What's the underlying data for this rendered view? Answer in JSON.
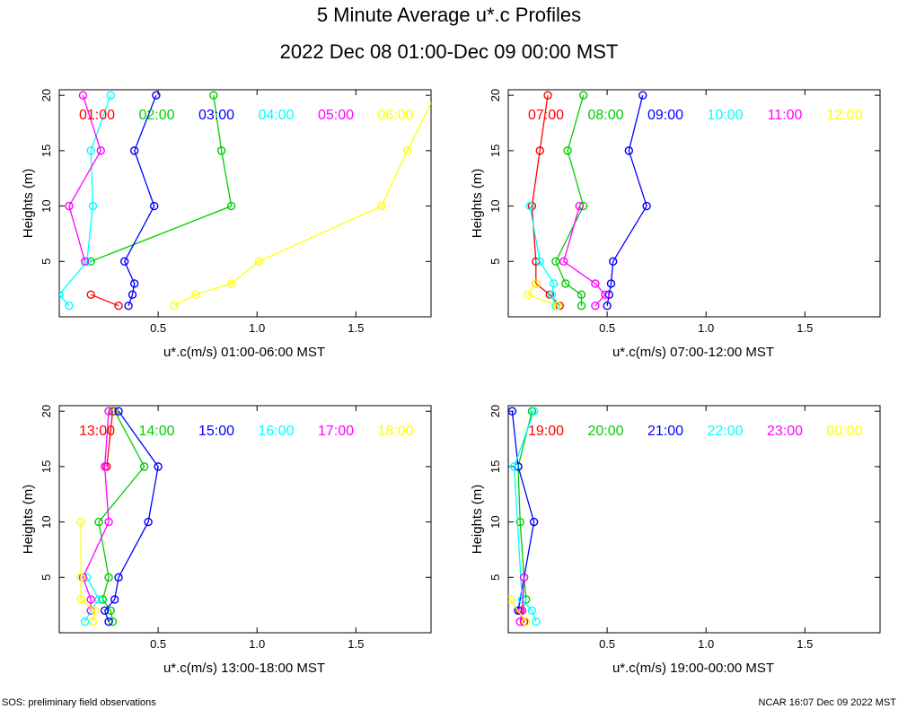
{
  "header": {
    "title": "5 Minute Average u*.c Profiles",
    "subtitle": "2022 Dec 08 01:00-Dec 09 00:00 MST"
  },
  "footer": {
    "left": "SOS: preliminary field observations",
    "right": "NCAR 16:07 Dec 09 2022 MST"
  },
  "chart_data": [
    {
      "type": "line",
      "xlabel": "u*.c(m/s) 01:00-06:00 MST",
      "ylabel": "Heights (m)",
      "xlim": [
        0,
        1.88
      ],
      "ylim": [
        0,
        20.5
      ],
      "xticks": [
        "0.5",
        "1.0",
        "1.5"
      ],
      "yticks": [
        "5",
        "10",
        "15",
        "20"
      ],
      "series": [
        {
          "name": "01:00",
          "color": "#ff0000",
          "points": [
            [
              0.3,
              1
            ],
            [
              0.16,
              2
            ]
          ]
        },
        {
          "name": "02:00",
          "color": "#00cc00",
          "points": [
            [
              0.16,
              5
            ],
            [
              0.87,
              10
            ],
            [
              0.82,
              15
            ],
            [
              0.78,
              20
            ]
          ]
        },
        {
          "name": "03:00",
          "color": "#0000ff",
          "points": [
            [
              0.35,
              1
            ],
            [
              0.37,
              2
            ],
            [
              0.38,
              3
            ],
            [
              0.33,
              5
            ],
            [
              0.48,
              10
            ],
            [
              0.38,
              15
            ],
            [
              0.49,
              20
            ]
          ]
        },
        {
          "name": "04:00",
          "color": "#00ffff",
          "points": [
            [
              0.05,
              1
            ],
            [
              0.0,
              2
            ],
            [
              0.14,
              5
            ],
            [
              0.17,
              10
            ],
            [
              0.16,
              15
            ],
            [
              0.26,
              20
            ]
          ]
        },
        {
          "name": "05:00",
          "color": "#ff00ff",
          "points": [
            [
              0.13,
              5
            ],
            [
              0.05,
              10
            ],
            [
              0.21,
              15
            ],
            [
              0.12,
              20
            ]
          ]
        },
        {
          "name": "06:00",
          "color": "#ffff00",
          "points": [
            [
              0.58,
              1
            ],
            [
              0.69,
              2
            ],
            [
              0.87,
              3
            ],
            [
              1.01,
              5
            ],
            [
              1.63,
              10
            ],
            [
              1.76,
              15
            ],
            [
              1.9,
              20
            ]
          ]
        }
      ]
    },
    {
      "type": "line",
      "xlabel": "u*.c(m/s) 07:00-12:00 MST",
      "ylabel": "Heights (m)",
      "xlim": [
        0,
        1.88
      ],
      "ylim": [
        0,
        20.5
      ],
      "xticks": [
        "0.5",
        "1.0",
        "1.5"
      ],
      "yticks": [
        "5",
        "10",
        "15",
        "20"
      ],
      "series": [
        {
          "name": "07:00",
          "color": "#ff0000",
          "points": [
            [
              0.26,
              1
            ],
            [
              0.21,
              2
            ],
            [
              0.14,
              3
            ],
            [
              0.14,
              5
            ],
            [
              0.12,
              10
            ],
            [
              0.16,
              15
            ],
            [
              0.2,
              20
            ]
          ]
        },
        {
          "name": "08:00",
          "color": "#00cc00",
          "points": [
            [
              0.37,
              1
            ],
            [
              0.37,
              2
            ],
            [
              0.29,
              3
            ],
            [
              0.24,
              5
            ],
            [
              0.38,
              10
            ],
            [
              0.3,
              15
            ],
            [
              0.38,
              20
            ]
          ]
        },
        {
          "name": "09:00",
          "color": "#0000ff",
          "points": [
            [
              0.5,
              1
            ],
            [
              0.51,
              2
            ],
            [
              0.52,
              3
            ],
            [
              0.53,
              5
            ],
            [
              0.7,
              10
            ],
            [
              0.61,
              15
            ],
            [
              0.68,
              20
            ]
          ]
        },
        {
          "name": "10:00",
          "color": "#00ffff",
          "points": [
            [
              0.24,
              1
            ],
            [
              0.22,
              2
            ],
            [
              0.23,
              3
            ],
            [
              0.16,
              5
            ],
            [
              0.11,
              10
            ]
          ]
        },
        {
          "name": "11:00",
          "color": "#ff00ff",
          "points": [
            [
              0.44,
              1
            ],
            [
              0.49,
              2
            ],
            [
              0.44,
              3
            ],
            [
              0.28,
              5
            ],
            [
              0.36,
              10
            ]
          ]
        },
        {
          "name": "12:00",
          "color": "#ffff00",
          "points": [
            [
              0.25,
              1
            ],
            [
              0.1,
              2
            ],
            [
              0.14,
              3
            ]
          ]
        }
      ]
    },
    {
      "type": "line",
      "xlabel": "u*.c(m/s) 13:00-18:00 MST",
      "ylabel": "Heights (m)",
      "xlim": [
        0,
        1.88
      ],
      "ylim": [
        0,
        20.5
      ],
      "xticks": [
        "0.5",
        "1.0",
        "1.5"
      ],
      "yticks": [
        "5",
        "10",
        "15",
        "20"
      ],
      "series": [
        {
          "name": "13:00",
          "color": "#ff0000",
          "points": [
            [
              0.24,
              15
            ],
            [
              0.27,
              20
            ]
          ]
        },
        {
          "name": "14:00",
          "color": "#00cc00",
          "points": [
            [
              0.27,
              1
            ],
            [
              0.26,
              2
            ],
            [
              0.22,
              3
            ],
            [
              0.25,
              5
            ],
            [
              0.2,
              10
            ],
            [
              0.43,
              15
            ],
            [
              0.28,
              20
            ]
          ]
        },
        {
          "name": "15:00",
          "color": "#0000ff",
          "points": [
            [
              0.25,
              1
            ],
            [
              0.23,
              2
            ],
            [
              0.28,
              3
            ],
            [
              0.3,
              5
            ],
            [
              0.45,
              10
            ],
            [
              0.5,
              15
            ],
            [
              0.3,
              20
            ]
          ]
        },
        {
          "name": "16:00",
          "color": "#00ffff",
          "points": [
            [
              0.13,
              1
            ],
            [
              0.16,
              2
            ],
            [
              0.2,
              3
            ],
            [
              0.14,
              5
            ]
          ]
        },
        {
          "name": "17:00",
          "color": "#ff00ff",
          "points": [
            [
              0.16,
              2
            ],
            [
              0.16,
              3
            ],
            [
              0.12,
              5
            ],
            [
              0.25,
              10
            ],
            [
              0.23,
              15
            ],
            [
              0.25,
              20
            ]
          ]
        },
        {
          "name": "18:00",
          "color": "#ffff00",
          "points": [
            [
              0.17,
              1
            ],
            [
              0.18,
              2
            ],
            [
              0.11,
              3
            ],
            [
              0.11,
              5
            ],
            [
              0.11,
              10
            ]
          ]
        }
      ]
    },
    {
      "type": "line",
      "xlabel": "u*.c(m/s) 19:00-00:00 MST",
      "ylabel": "Heights (m)",
      "xlim": [
        0,
        1.88
      ],
      "ylim": [
        0,
        20.5
      ],
      "xticks": [
        "0.5",
        "1.0",
        "1.5"
      ],
      "yticks": [
        "5",
        "10",
        "15",
        "20"
      ],
      "series": [
        {
          "name": "19:00",
          "color": "#ff0000",
          "points": [
            [
              0.08,
              1
            ],
            [
              0.06,
              2
            ]
          ]
        },
        {
          "name": "20:00",
          "color": "#00cc00",
          "points": [
            [
              0.07,
              2
            ],
            [
              0.09,
              3
            ],
            [
              0.08,
              5
            ],
            [
              0.06,
              10
            ],
            [
              0.05,
              15
            ],
            [
              0.12,
              20
            ]
          ]
        },
        {
          "name": "21:00",
          "color": "#0000ff",
          "points": [
            [
              0.05,
              2
            ],
            [
              0.13,
              10
            ],
            [
              0.05,
              15
            ],
            [
              0.02,
              20
            ]
          ]
        },
        {
          "name": "22:00",
          "color": "#00ffff",
          "points": [
            [
              0.14,
              1
            ],
            [
              0.12,
              2
            ],
            [
              0.07,
              3
            ],
            [
              0.03,
              15
            ],
            [
              0.13,
              20
            ]
          ]
        },
        {
          "name": "23:00",
          "color": "#ff00ff",
          "points": [
            [
              0.06,
              1
            ],
            [
              0.07,
              2
            ],
            [
              0.08,
              5
            ]
          ]
        },
        {
          "name": "00:00",
          "color": "#ffff00",
          "points": [
            [
              0.09,
              1
            ],
            [
              0.01,
              3
            ]
          ]
        }
      ]
    }
  ]
}
